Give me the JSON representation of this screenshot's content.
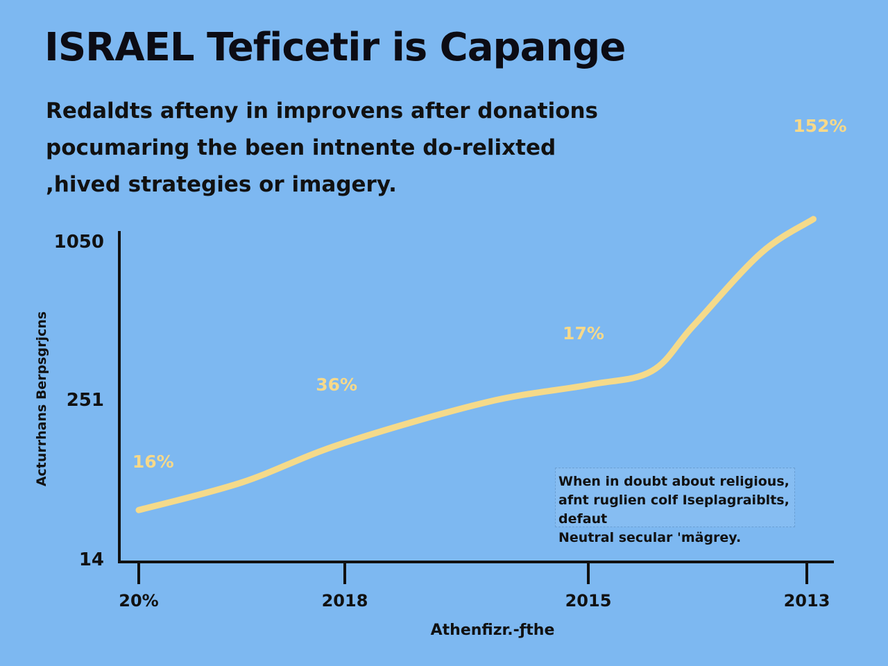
{
  "chart_data": {
    "type": "line",
    "title": "ISRAEL Teficetir is Capange",
    "subtitle": "Redaldts afteny in improvens after donations pocumaring the been intnente do-relixted ,hived strategies or imagery.",
    "xlabel": "Athenfizr.-ƒthe",
    "ylabel": "Acturrhans Berpsgrjcns",
    "categories": [
      "20%",
      "2018",
      "2015",
      "2013"
    ],
    "y_ticks": [
      14,
      251,
      1050
    ],
    "grid": false,
    "line_color": "#f5da8a",
    "background": "#7db8f1",
    "series": [
      {
        "points": [
          {
            "x": 0,
            "y": 89
          },
          {
            "x": 0.5,
            "y": 130
          },
          {
            "x": 0.98,
            "y": 187
          },
          {
            "x": 1.58,
            "y": 249
          },
          {
            "x": 2.0,
            "y": 332
          },
          {
            "x": 2.29,
            "y": 402
          },
          {
            "x": 2.48,
            "y": 630
          },
          {
            "x": 2.79,
            "y": 998
          },
          {
            "x": 3.03,
            "y": 1170
          }
        ]
      }
    ],
    "data_labels": [
      {
        "text": "16%",
        "x": 0.07,
        "y": 160
      },
      {
        "text": "36%",
        "x": 0.96,
        "y": 330
      },
      {
        "text": "17%",
        "x": 1.98,
        "y": 590
      },
      {
        "text": "152%",
        "x": 3.06,
        "y": 1640
      }
    ],
    "annotation": {
      "lines": [
        "When in doubt about religious,",
        "afnt ruglien colf Iseplagraiblts, defaut",
        "Neutral secular 'mägrey."
      ]
    }
  }
}
